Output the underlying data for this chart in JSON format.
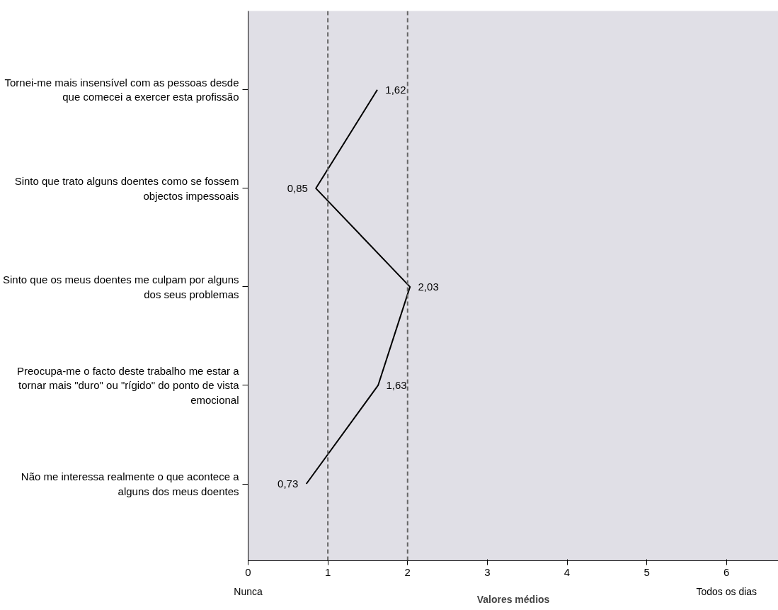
{
  "chart_data": {
    "type": "line",
    "orientation": "horizontal",
    "xlabel": "Valores médios",
    "categories": [
      "Tornei-me mais insensível com as pessoas desde que comecei a exercer esta profissão",
      "Sinto que trato alguns doentes como se fossem objectos impessoais",
      "Sinto que os meus doentes me culpam por alguns dos seus problemas",
      "Preocupa-me o facto deste trabalho me estar a tornar mais \"duro\" ou \"rígido\" do ponto de vista emocional",
      "Não me interessa realmente o que acontece a alguns dos meus doentes"
    ],
    "series": [
      {
        "color": "#000000",
        "values": [
          1.62,
          0.85,
          2.03,
          1.63,
          0.73
        ],
        "value_labels": [
          "1,62",
          "0,85",
          "2,03",
          "1,63",
          "0,73"
        ]
      }
    ],
    "annotations": [
      "Nunca",
      "Todos os dias"
    ],
    "xlim": [
      0,
      6.65
    ],
    "xticks": [
      0,
      1,
      2,
      3,
      4,
      5,
      6
    ],
    "ref_lines": [
      {
        "axis": "x",
        "value": 1,
        "color": "#666666",
        "line_style": "dashed"
      },
      {
        "axis": "x",
        "value": 2,
        "color": "#666666",
        "line_style": "dashed"
      }
    ],
    "grid": false,
    "line_style": "solid"
  }
}
